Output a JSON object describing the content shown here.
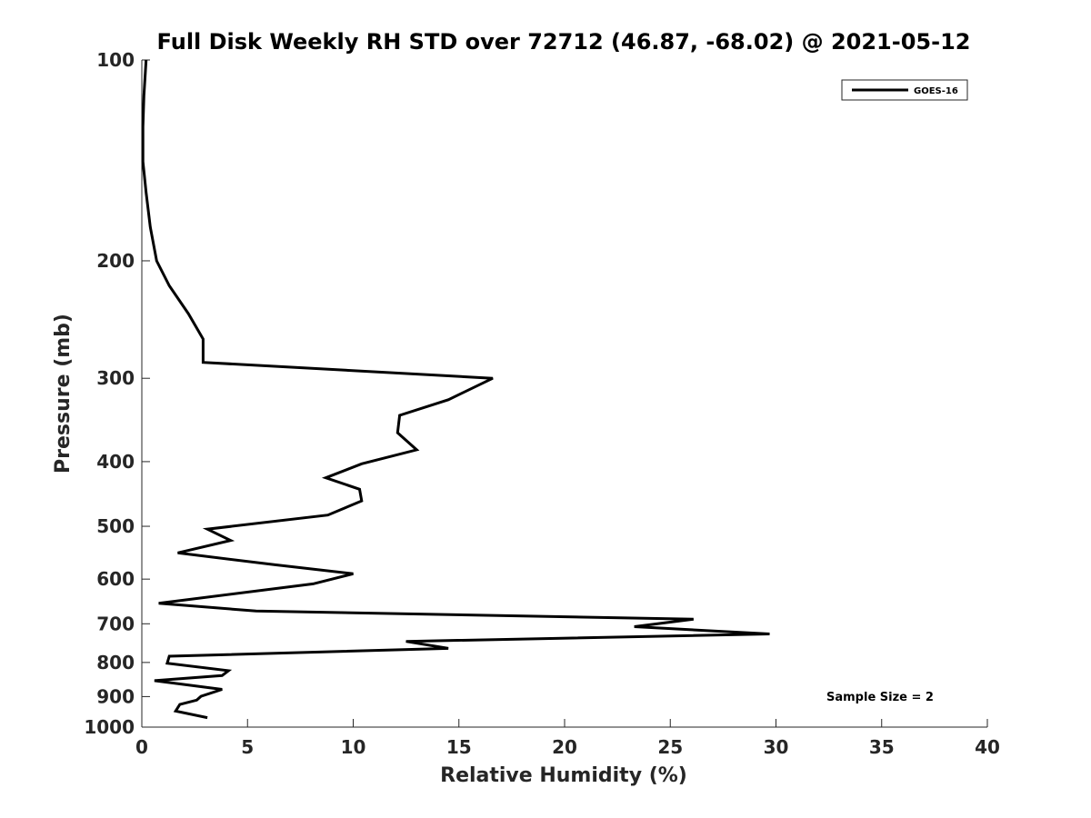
{
  "chart_data": {
    "type": "line",
    "title": "Full Disk Weekly RH STD over 72712 (46.87, -68.02) @ 2021-05-12",
    "xlabel": "Relative Humidity (%)",
    "ylabel": "Pressure (mb)",
    "xlim": [
      0,
      40
    ],
    "ylim": [
      100,
      1000
    ],
    "yscale": "log",
    "yaxis_reversed": true,
    "grid": false,
    "legend_position": "top-right",
    "xticks": [
      0,
      5,
      10,
      15,
      20,
      25,
      30,
      35,
      40
    ],
    "xtick_labels": [
      "0",
      "5",
      "10",
      "15",
      "20",
      "25",
      "30",
      "35",
      "40"
    ],
    "yticks": [
      100,
      200,
      300,
      400,
      500,
      600,
      700,
      800,
      900,
      1000
    ],
    "ytick_labels": [
      "100",
      "200",
      "300",
      "400",
      "500",
      "600",
      "700",
      "800",
      "900",
      "1000"
    ],
    "annotation": "Sample Size = 2",
    "series": [
      {
        "name": "GOES-16",
        "color": "#000000",
        "points": [
          [
            0.2,
            100
          ],
          [
            0.1,
            113
          ],
          [
            0.05,
            126
          ],
          [
            0.05,
            142
          ],
          [
            0.2,
            158
          ],
          [
            0.4,
            178
          ],
          [
            0.7,
            200
          ],
          [
            1.3,
            218
          ],
          [
            2.2,
            240
          ],
          [
            2.9,
            262
          ],
          [
            2.9,
            284
          ],
          [
            16.6,
            300
          ],
          [
            14.5,
            323
          ],
          [
            12.2,
            341
          ],
          [
            12.1,
            362
          ],
          [
            13.0,
            384
          ],
          [
            10.4,
            403
          ],
          [
            8.7,
            423
          ],
          [
            10.3,
            440
          ],
          [
            10.4,
            458
          ],
          [
            8.8,
            481
          ],
          [
            3.1,
            505
          ],
          [
            4.2,
            525
          ],
          [
            1.7,
            548
          ],
          [
            6.3,
            571
          ],
          [
            10.0,
            589
          ],
          [
            8.1,
            610
          ],
          [
            0.8,
            652
          ],
          [
            5.4,
            670
          ],
          [
            26.1,
            689
          ],
          [
            23.3,
            707
          ],
          [
            29.7,
            725
          ],
          [
            12.5,
            744
          ],
          [
            14.5,
            762
          ],
          [
            1.3,
            783
          ],
          [
            1.2,
            802
          ],
          [
            4.1,
            823
          ],
          [
            3.8,
            837
          ],
          [
            0.6,
            852
          ],
          [
            3.8,
            878
          ],
          [
            2.8,
            899
          ],
          [
            2.6,
            911
          ],
          [
            1.8,
            925
          ],
          [
            1.6,
            946
          ],
          [
            3.1,
            968
          ]
        ]
      }
    ]
  }
}
